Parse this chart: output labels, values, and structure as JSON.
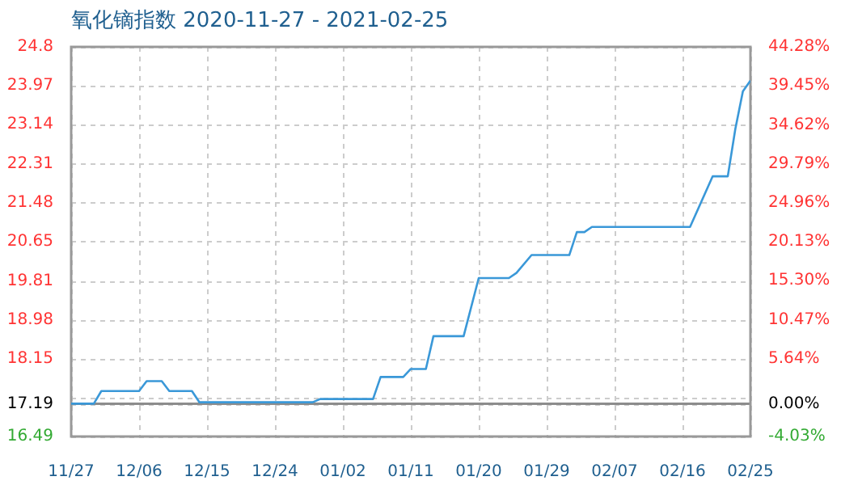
{
  "chart_data": {
    "type": "line",
    "title": "氧化镝指数 2020-11-27 - 2021-02-25",
    "x": [
      "2020-11-27",
      "2020-11-30",
      "2020-12-01",
      "2020-12-06",
      "2020-12-07",
      "2020-12-09",
      "2020-12-10",
      "2020-12-13",
      "2020-12-14",
      "2020-12-29",
      "2020-12-30",
      "2021-01-06",
      "2021-01-07",
      "2021-01-10",
      "2021-01-11",
      "2021-01-13",
      "2021-01-14",
      "2021-01-18",
      "2021-01-20",
      "2021-01-24",
      "2021-01-25",
      "2021-01-27",
      "2021-02-01",
      "2021-02-02",
      "2021-02-03",
      "2021-02-04",
      "2021-02-17",
      "2021-02-20",
      "2021-02-22",
      "2021-02-23",
      "2021-02-24",
      "2021-02-25"
    ],
    "series": [
      {
        "color": "#3a98d8",
        "values": [
          17.19,
          17.19,
          17.46,
          17.46,
          17.67,
          17.67,
          17.46,
          17.46,
          17.22,
          17.22,
          17.29,
          17.29,
          17.76,
          17.76,
          17.93,
          17.93,
          18.63,
          18.63,
          19.87,
          19.87,
          19.98,
          20.36,
          20.36,
          20.85,
          20.85,
          20.96,
          20.96,
          22.04,
          22.04,
          23.05,
          23.85,
          24.08
        ]
      }
    ],
    "xlim": [
      "2020-11-27",
      "2021-02-25"
    ],
    "xticks": [
      {
        "value": "2020-11-27",
        "label": "11/27"
      },
      {
        "value": "2020-12-06",
        "label": "12/06"
      },
      {
        "value": "2020-12-15",
        "label": "12/15"
      },
      {
        "value": "2020-12-24",
        "label": "12/24"
      },
      {
        "value": "2021-01-02",
        "label": "01/02"
      },
      {
        "value": "2021-01-11",
        "label": "01/11"
      },
      {
        "value": "2021-01-20",
        "label": "01/20"
      },
      {
        "value": "2021-01-29",
        "label": "01/29"
      },
      {
        "value": "2021-02-07",
        "label": "02/07"
      },
      {
        "value": "2021-02-16",
        "label": "02/16"
      },
      {
        "value": "2021-02-25",
        "label": "02/25"
      }
    ],
    "ylim": [
      16.49,
      24.8
    ],
    "yticks": [
      16.49,
      17.19,
      {
        "value": 17.32,
        "label": null
      },
      18.15,
      18.98,
      19.81,
      20.65,
      21.48,
      22.31,
      23.14,
      23.97,
      24.8
    ],
    "y2lim": [
      -4.03,
      44.28
    ],
    "y2ticks": [
      {
        "value": -4.03,
        "label": "-4.03%"
      },
      {
        "value": 0,
        "label": "0.00%"
      },
      {
        "value": 5.64,
        "label": "5.64%"
      },
      {
        "value": 10.47,
        "label": "10.47%"
      },
      {
        "value": 15.3,
        "label": "15.30%"
      },
      {
        "value": 20.13,
        "label": "20.13%"
      },
      {
        "value": 24.96,
        "label": "24.96%"
      },
      {
        "value": 29.79,
        "label": "29.79%"
      },
      {
        "value": 34.62,
        "label": "34.62%"
      },
      {
        "value": 39.45,
        "label": "39.45%"
      },
      {
        "value": 44.28,
        "label": "44.28%"
      }
    ],
    "ref_lines": [
      {
        "axis": "y",
        "value": 17.19,
        "color": "#8c8c8c"
      }
    ],
    "grid": true,
    "legend": false,
    "marker": "none",
    "line_style": "solid"
  }
}
